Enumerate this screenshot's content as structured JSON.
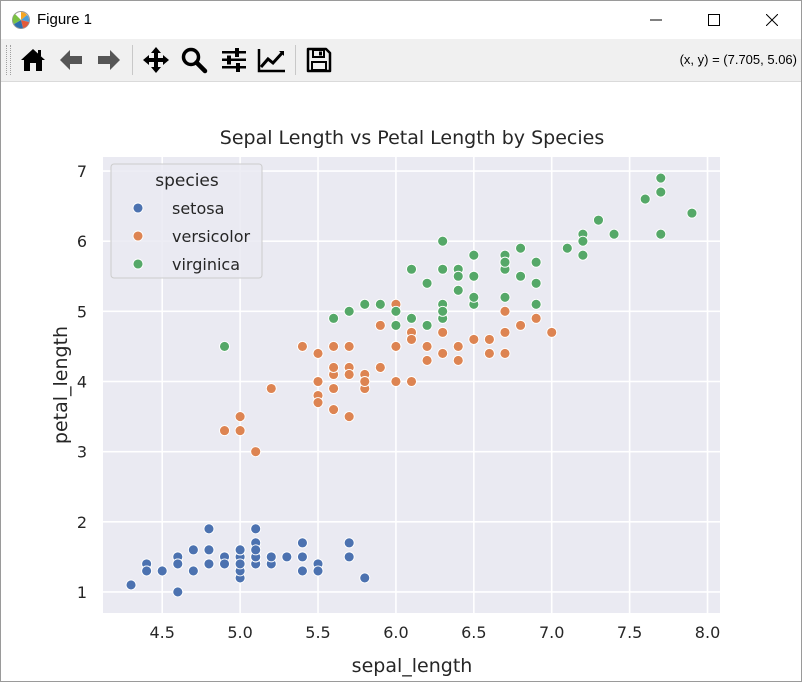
{
  "window": {
    "title": "Figure 1",
    "controls": {
      "minimize": "minimize",
      "maximize": "maximize",
      "close": "close"
    }
  },
  "toolbar": {
    "tools": [
      {
        "name": "home",
        "icon": "home-icon"
      },
      {
        "name": "back",
        "icon": "arrow-left-icon"
      },
      {
        "name": "forward",
        "icon": "arrow-right-icon"
      },
      {
        "name": "pan",
        "icon": "move-icon"
      },
      {
        "name": "zoom",
        "icon": "magnifier-icon"
      },
      {
        "name": "configure-subplots",
        "icon": "sliders-icon"
      },
      {
        "name": "edit-axis",
        "icon": "line-chart-icon"
      },
      {
        "name": "save",
        "icon": "floppy-disk-icon"
      }
    ],
    "coords_readout": "(x, y) = (7.705, 5.06)"
  },
  "chart_data": {
    "type": "scatter",
    "title": "Sepal Length vs Petal Length by Species",
    "xlabel": "sepal_length",
    "ylabel": "petal_length",
    "xlim": [
      4.12,
      8.08
    ],
    "ylim": [
      0.7,
      7.2
    ],
    "xticks": [
      "4.5",
      "5.0",
      "5.5",
      "6.0",
      "6.5",
      "7.0",
      "7.5",
      "8.0"
    ],
    "xtick_values": [
      4.5,
      5.0,
      5.5,
      6.0,
      6.5,
      7.0,
      7.5,
      8.0
    ],
    "yticks": [
      "1",
      "2",
      "3",
      "4",
      "5",
      "6",
      "7"
    ],
    "ytick_values": [
      1,
      2,
      3,
      4,
      5,
      6,
      7
    ],
    "grid": true,
    "background": "#eaeaf2",
    "legend": {
      "title": "species",
      "placement": "top-left"
    },
    "series": [
      {
        "name": "setosa",
        "color": "#4c72b0",
        "points": [
          [
            5.1,
            1.4
          ],
          [
            4.9,
            1.4
          ],
          [
            4.7,
            1.3
          ],
          [
            4.6,
            1.5
          ],
          [
            5.0,
            1.4
          ],
          [
            5.4,
            1.7
          ],
          [
            4.6,
            1.4
          ],
          [
            5.0,
            1.5
          ],
          [
            4.4,
            1.4
          ],
          [
            4.9,
            1.5
          ],
          [
            5.4,
            1.5
          ],
          [
            4.8,
            1.6
          ],
          [
            4.8,
            1.4
          ],
          [
            4.3,
            1.1
          ],
          [
            5.8,
            1.2
          ],
          [
            5.7,
            1.5
          ],
          [
            5.4,
            1.3
          ],
          [
            5.1,
            1.4
          ],
          [
            5.7,
            1.7
          ],
          [
            5.1,
            1.5
          ],
          [
            5.4,
            1.7
          ],
          [
            5.1,
            1.5
          ],
          [
            4.6,
            1.0
          ],
          [
            5.1,
            1.7
          ],
          [
            4.8,
            1.9
          ],
          [
            5.0,
            1.6
          ],
          [
            5.0,
            1.6
          ],
          [
            5.2,
            1.5
          ],
          [
            5.2,
            1.4
          ],
          [
            4.7,
            1.6
          ],
          [
            4.8,
            1.6
          ],
          [
            5.4,
            1.5
          ],
          [
            5.2,
            1.5
          ],
          [
            5.5,
            1.4
          ],
          [
            4.9,
            1.5
          ],
          [
            5.0,
            1.2
          ],
          [
            5.5,
            1.3
          ],
          [
            4.9,
            1.4
          ],
          [
            4.4,
            1.3
          ],
          [
            5.1,
            1.5
          ],
          [
            5.0,
            1.3
          ],
          [
            4.5,
            1.3
          ],
          [
            4.4,
            1.3
          ],
          [
            5.0,
            1.6
          ],
          [
            5.1,
            1.9
          ],
          [
            4.8,
            1.4
          ],
          [
            5.1,
            1.6
          ],
          [
            4.6,
            1.4
          ],
          [
            5.3,
            1.5
          ],
          [
            5.0,
            1.4
          ]
        ]
      },
      {
        "name": "versicolor",
        "color": "#dd8452",
        "points": [
          [
            7.0,
            4.7
          ],
          [
            6.4,
            4.5
          ],
          [
            6.9,
            4.9
          ],
          [
            5.5,
            4.0
          ],
          [
            6.5,
            4.6
          ],
          [
            5.7,
            4.5
          ],
          [
            6.3,
            4.7
          ],
          [
            4.9,
            3.3
          ],
          [
            6.6,
            4.6
          ],
          [
            5.2,
            3.9
          ],
          [
            5.0,
            3.5
          ],
          [
            5.9,
            4.2
          ],
          [
            6.0,
            4.0
          ],
          [
            6.1,
            4.7
          ],
          [
            5.6,
            3.6
          ],
          [
            6.7,
            4.4
          ],
          [
            5.6,
            4.5
          ],
          [
            5.8,
            4.1
          ],
          [
            6.2,
            4.5
          ],
          [
            5.6,
            3.9
          ],
          [
            5.9,
            4.8
          ],
          [
            6.1,
            4.0
          ],
          [
            6.3,
            4.9
          ],
          [
            6.1,
            4.7
          ],
          [
            6.4,
            4.3
          ],
          [
            6.6,
            4.4
          ],
          [
            6.8,
            4.8
          ],
          [
            6.7,
            5.0
          ],
          [
            6.0,
            4.5
          ],
          [
            5.7,
            3.5
          ],
          [
            5.5,
            3.8
          ],
          [
            5.5,
            3.7
          ],
          [
            5.8,
            3.9
          ],
          [
            6.0,
            5.1
          ],
          [
            5.4,
            4.5
          ],
          [
            6.0,
            4.5
          ],
          [
            6.7,
            4.7
          ],
          [
            6.3,
            4.4
          ],
          [
            5.6,
            4.1
          ],
          [
            5.5,
            4.0
          ],
          [
            5.5,
            4.4
          ],
          [
            6.1,
            4.6
          ],
          [
            5.8,
            4.0
          ],
          [
            5.0,
            3.3
          ],
          [
            5.6,
            4.2
          ],
          [
            5.7,
            4.2
          ],
          [
            5.7,
            4.2
          ],
          [
            6.2,
            4.3
          ],
          [
            5.1,
            3.0
          ],
          [
            5.7,
            4.1
          ]
        ]
      },
      {
        "name": "virginica",
        "color": "#55a868",
        "points": [
          [
            6.3,
            6.0
          ],
          [
            5.8,
            5.1
          ],
          [
            7.1,
            5.9
          ],
          [
            6.3,
            5.6
          ],
          [
            6.5,
            5.8
          ],
          [
            7.6,
            6.6
          ],
          [
            4.9,
            4.5
          ],
          [
            7.3,
            6.3
          ],
          [
            6.7,
            5.8
          ],
          [
            7.2,
            6.1
          ],
          [
            6.5,
            5.1
          ],
          [
            6.4,
            5.3
          ],
          [
            6.8,
            5.5
          ],
          [
            5.7,
            5.0
          ],
          [
            5.8,
            5.1
          ],
          [
            6.4,
            5.3
          ],
          [
            6.5,
            5.5
          ],
          [
            7.7,
            6.7
          ],
          [
            7.7,
            6.9
          ],
          [
            6.0,
            5.0
          ],
          [
            6.9,
            5.7
          ],
          [
            5.6,
            4.9
          ],
          [
            7.7,
            6.7
          ],
          [
            6.3,
            4.9
          ],
          [
            6.7,
            5.7
          ],
          [
            7.2,
            6.0
          ],
          [
            6.2,
            4.8
          ],
          [
            6.1,
            4.9
          ],
          [
            6.4,
            5.6
          ],
          [
            7.2,
            5.8
          ],
          [
            7.4,
            6.1
          ],
          [
            7.9,
            6.4
          ],
          [
            6.4,
            5.6
          ],
          [
            6.3,
            5.1
          ],
          [
            6.1,
            5.6
          ],
          [
            7.7,
            6.1
          ],
          [
            6.3,
            5.6
          ],
          [
            6.4,
            5.5
          ],
          [
            6.0,
            4.8
          ],
          [
            6.9,
            5.4
          ],
          [
            6.7,
            5.6
          ],
          [
            6.9,
            5.1
          ],
          [
            5.8,
            5.1
          ],
          [
            6.8,
            5.9
          ],
          [
            6.7,
            5.7
          ],
          [
            6.7,
            5.2
          ],
          [
            6.3,
            5.0
          ],
          [
            6.5,
            5.2
          ],
          [
            6.2,
            5.4
          ],
          [
            5.9,
            5.1
          ]
        ]
      }
    ]
  }
}
